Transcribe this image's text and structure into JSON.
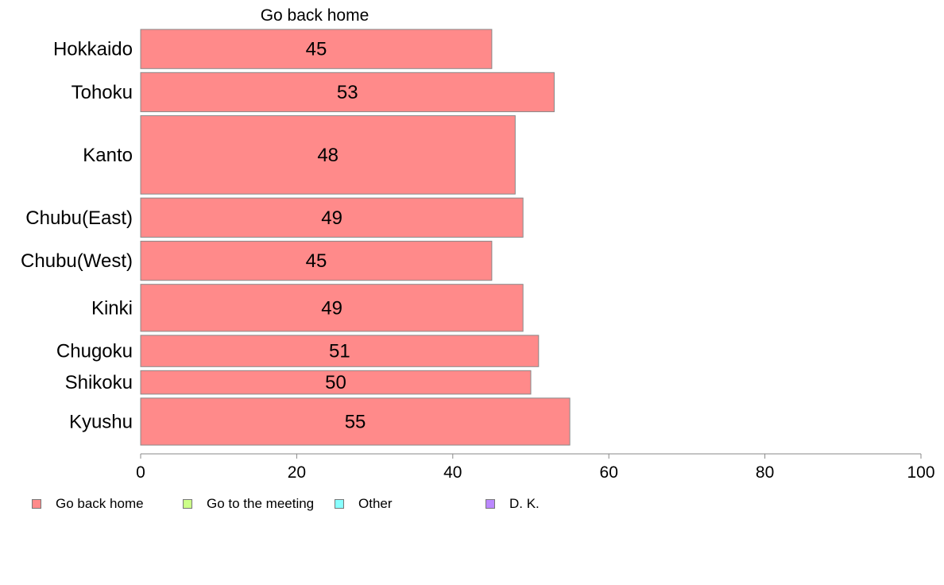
{
  "chart_data": {
    "type": "bar",
    "orientation": "horizontal",
    "title": "Go back home",
    "categories": [
      "Hokkaido",
      "Tohoku",
      "Kanto",
      "Chubu(East)",
      "Chubu(West)",
      "Kinki",
      "Chugoku",
      "Shikoku",
      "Kyushu"
    ],
    "series": [
      {
        "name": "Go back home",
        "values": [
          45,
          53,
          48,
          49,
          45,
          49,
          51,
          50,
          55
        ],
        "color": "#ff8a8a"
      }
    ],
    "data_labels": [
      "45",
      "53",
      "48",
      "49",
      "45",
      "49",
      "51",
      "50",
      "55"
    ],
    "relative_bar_widths": [
      1,
      1,
      2,
      1,
      1,
      1.2,
      0.8,
      0.6,
      1.2
    ],
    "xlim": [
      0,
      100
    ],
    "xticks": [
      0,
      20,
      40,
      60,
      80,
      100
    ],
    "grid": false,
    "legend_position": "bottom-left",
    "legend": [
      {
        "label": "Go back home",
        "color": "#ff8a8a"
      },
      {
        "label": "Go to the meeting",
        "color": "#ccff88"
      },
      {
        "label": "Other",
        "color": "#88ffff"
      },
      {
        "label": "D. K.",
        "color": "#bb88ff"
      }
    ]
  }
}
